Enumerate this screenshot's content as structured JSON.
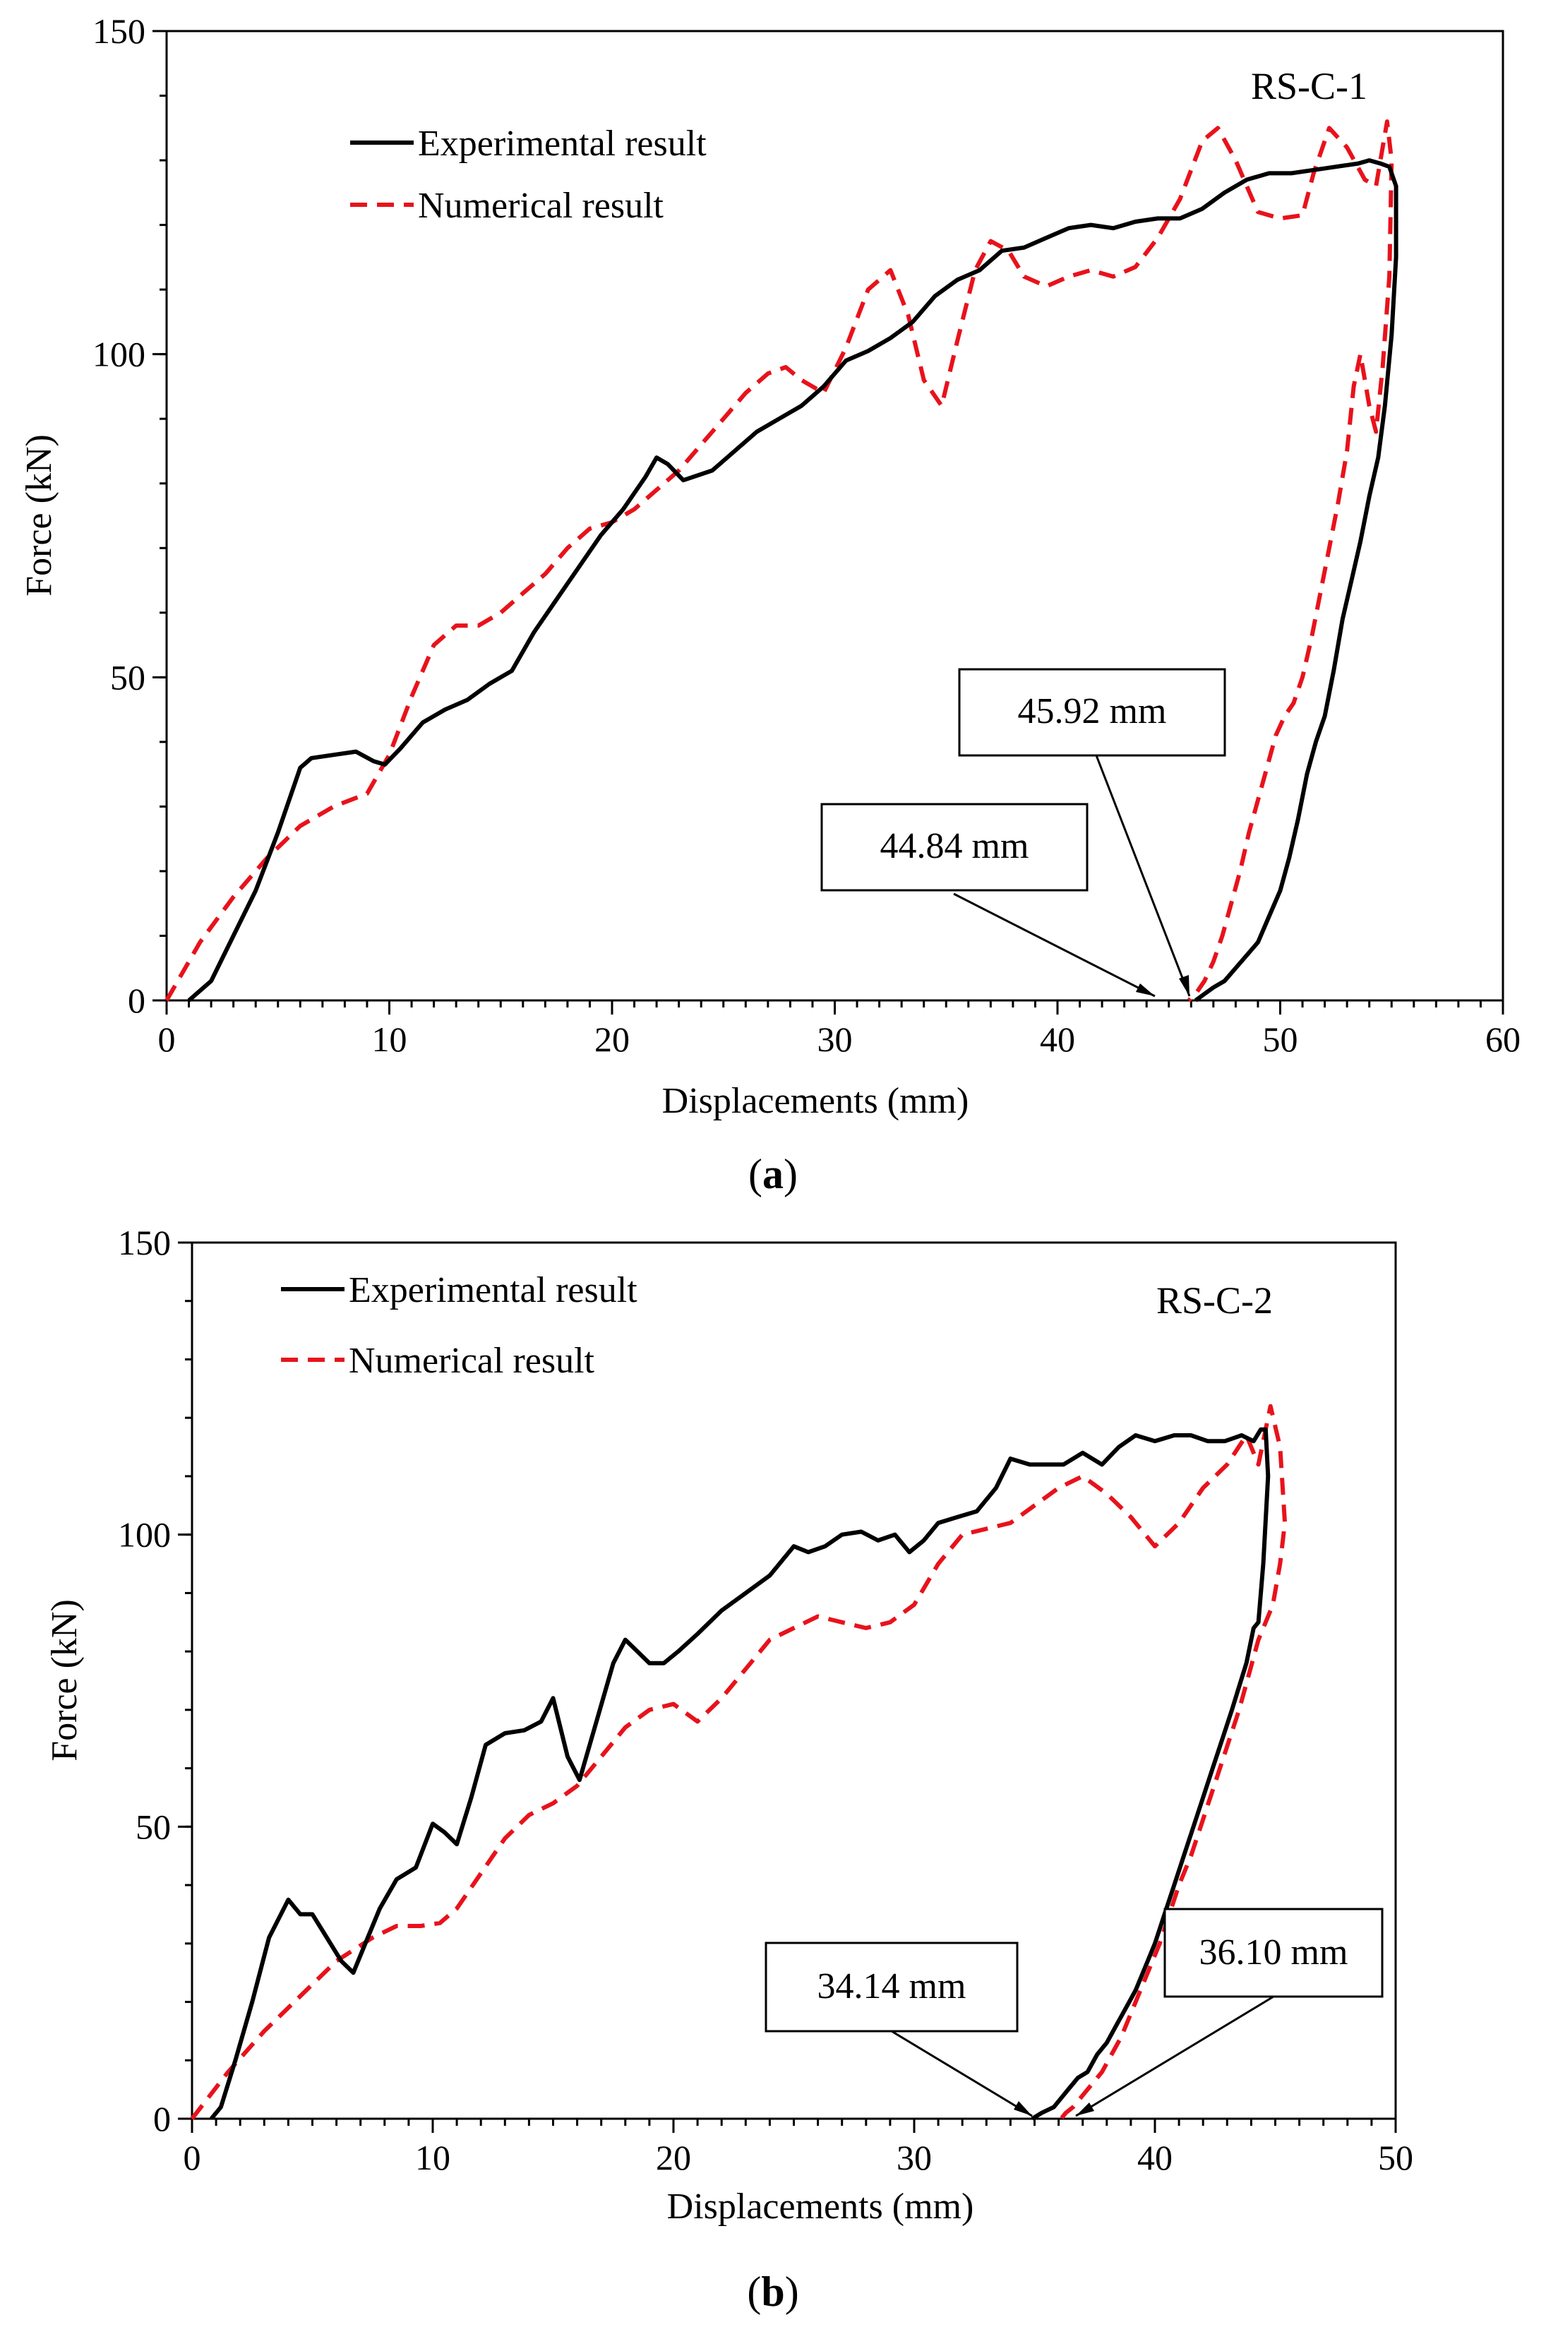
{
  "chart_data": [
    {
      "type": "line",
      "panel_label": "a",
      "chart_id": "RS-C-1",
      "xlabel": "Displacements (mm)",
      "ylabel": "Force (kN)",
      "xlim": [
        0,
        60
      ],
      "ylim": [
        0,
        150
      ],
      "xticks": [
        0,
        10,
        20,
        30,
        40,
        50,
        60
      ],
      "yticks": [
        0,
        50,
        100,
        150
      ],
      "legend_position": "top-left",
      "series": [
        {
          "name": "Experimental result",
          "style": "solid",
          "color": "#000000",
          "x": [
            1.0,
            2.0,
            3.0,
            4.0,
            5.0,
            6.0,
            6.5,
            7.5,
            8.5,
            9.3,
            9.8,
            10.5,
            11.5,
            12.5,
            13.5,
            14.5,
            15.5,
            16.5,
            17.5,
            18.5,
            19.5,
            20.5,
            21.5,
            22.0,
            22.5,
            23.2,
            24.5,
            25.5,
            26.5,
            27.5,
            28.5,
            29.5,
            30.5,
            31.5,
            32.5,
            33.5,
            34.5,
            35.5,
            36.5,
            37.5,
            38.5,
            39.5,
            40.5,
            41.5,
            42.5,
            43.5,
            44.5,
            45.5,
            46.5,
            47.5,
            48.5,
            49.5,
            50.5,
            51.5,
            52.5,
            53.5,
            54.0,
            54.5,
            54.9,
            55.2,
            55.2,
            55.0,
            54.7,
            54.4,
            54.0,
            53.6,
            53.2,
            52.8,
            52.4,
            52.0,
            51.6,
            51.2,
            50.8,
            50.4,
            50.0,
            49.5,
            49.0,
            48.5,
            48.0,
            47.5,
            47.0,
            46.6,
            46.2
          ],
          "y": [
            0,
            3,
            10,
            17,
            26,
            36,
            37.5,
            38,
            38.5,
            37,
            36.5,
            39,
            43,
            45,
            46.5,
            49,
            51,
            57,
            62,
            67,
            72,
            76,
            81,
            84,
            83,
            80.5,
            82,
            85,
            88,
            90,
            92,
            95,
            99,
            100.5,
            102.5,
            105,
            109,
            111.5,
            113,
            116,
            116.5,
            118,
            119.5,
            120,
            119.5,
            120.5,
            121,
            121,
            122.5,
            125,
            127,
            128,
            128,
            128.5,
            129,
            129.5,
            130,
            129.5,
            129,
            126,
            115,
            103,
            92,
            84,
            78,
            71,
            65,
            59,
            51,
            44,
            40,
            35,
            28,
            22,
            17,
            13,
            9,
            7,
            5,
            3,
            2,
            1,
            0
          ]
        },
        {
          "name": "Numerical result",
          "style": "dashed",
          "color": "#e8121b",
          "x": [
            0,
            1.5,
            3.0,
            4.5,
            6.0,
            7.5,
            9.0,
            10.0,
            11.0,
            12.0,
            13.0,
            14.0,
            15.0,
            16.0,
            17.0,
            18.0,
            19.0,
            20.0,
            21.0,
            22.0,
            23.0,
            24.0,
            25.0,
            26.0,
            27.0,
            27.8,
            28.5,
            29.5,
            30.5,
            31.5,
            32.5,
            33.3,
            34.0,
            34.8,
            35.5,
            36.3,
            37.0,
            37.8,
            38.5,
            39.5,
            40.5,
            41.5,
            42.5,
            43.5,
            44.5,
            45.5,
            46.5,
            47.2,
            48.0,
            49.0,
            50.0,
            51.0,
            51.5,
            52.2,
            53.0,
            53.8,
            54.3,
            54.8,
            55.0,
            54.9,
            54.6,
            54.3,
            54.0,
            53.6,
            53.3,
            53.0,
            52.6,
            52.2,
            51.8,
            51.4,
            51.0,
            50.6,
            50.2,
            49.8,
            49.4,
            49.0,
            48.6,
            48.2,
            47.8,
            47.4,
            47.0,
            46.6,
            46.2,
            45.9
          ],
          "y": [
            0,
            9,
            16,
            22,
            27,
            30,
            32,
            38,
            47,
            55,
            58,
            58,
            60,
            63,
            66,
            70,
            73,
            74,
            76,
            79,
            82,
            86,
            90,
            94,
            97,
            98,
            96,
            94,
            101,
            110,
            113,
            106,
            96,
            92,
            102,
            113,
            117.5,
            116,
            112,
            110.5,
            112,
            113,
            112,
            113.5,
            118,
            124,
            133,
            135,
            130,
            122,
            121,
            121.5,
            128,
            135,
            132,
            127,
            126,
            136,
            130,
            112,
            98,
            88,
            92,
            100,
            95,
            85,
            77,
            70,
            63,
            56,
            50,
            46,
            44,
            41,
            36,
            31,
            26,
            20,
            15,
            10,
            6,
            3,
            1,
            0
          ]
        }
      ],
      "annotations": [
        {
          "text": "45.92 mm",
          "x": 45.92,
          "y": 0
        },
        {
          "text": "44.84 mm",
          "x": 44.84,
          "y": 0
        }
      ]
    },
    {
      "type": "line",
      "panel_label": "b",
      "chart_id": "RS-C-2",
      "xlabel": "Displacements (mm)",
      "ylabel": "Force (kN)",
      "xlim": [
        0,
        50
      ],
      "ylim": [
        0,
        150
      ],
      "xticks": [
        0,
        10,
        20,
        30,
        40,
        50
      ],
      "yticks": [
        0,
        50,
        100,
        150
      ],
      "legend_position": "top-left",
      "series": [
        {
          "name": "Experimental result",
          "style": "solid",
          "color": "#000000",
          "x": [
            0.8,
            1.2,
            1.8,
            2.5,
            3.2,
            4.0,
            4.5,
            5.0,
            5.6,
            6.2,
            6.7,
            7.2,
            7.8,
            8.5,
            9.3,
            10.0,
            10.5,
            11.0,
            11.6,
            12.2,
            13.0,
            13.8,
            14.5,
            15.0,
            15.6,
            16.1,
            16.8,
            17.5,
            18.0,
            18.5,
            19.0,
            19.6,
            20.2,
            21.0,
            22.0,
            23.0,
            24.0,
            25.0,
            25.6,
            26.3,
            27.0,
            27.8,
            28.5,
            29.2,
            29.8,
            30.4,
            31.0,
            31.8,
            32.6,
            33.4,
            34.0,
            34.8,
            35.5,
            36.2,
            37.0,
            37.8,
            38.5,
            39.2,
            40.0,
            40.8,
            41.5,
            42.2,
            42.9,
            43.6,
            44.1,
            44.4,
            44.6,
            44.7,
            44.5,
            44.3,
            44.1,
            43.8,
            43.5,
            43.2,
            42.8,
            42.4,
            42.0,
            41.6,
            41.2,
            40.8,
            40.4,
            40.0,
            39.6,
            39.2,
            38.8,
            38.4,
            38.0,
            37.6,
            37.2,
            36.8,
            36.4,
            36.2,
            35.8,
            35.3,
            34.9
          ],
          "y": [
            0,
            2,
            10,
            20,
            31,
            37.5,
            35,
            35,
            31,
            27,
            25,
            30,
            36,
            41,
            43,
            50.5,
            49,
            47,
            55,
            64,
            66,
            66.5,
            68,
            72,
            62,
            58,
            68,
            78,
            82,
            80,
            78,
            78,
            80,
            83,
            87,
            90,
            93,
            98,
            97,
            98,
            100,
            100.5,
            99,
            100,
            97,
            99,
            102,
            103,
            104,
            108,
            113,
            112,
            112,
            112,
            114,
            112,
            115,
            117,
            116,
            117,
            117,
            116,
            116,
            117,
            116,
            118,
            118,
            110,
            95,
            85,
            84,
            78,
            74,
            70,
            65,
            60,
            55,
            50,
            45,
            40,
            35,
            30,
            26,
            22,
            19,
            16,
            13,
            11,
            8,
            7,
            5,
            4,
            2,
            1,
            0
          ]
        },
        {
          "name": "Numerical result",
          "style": "dashed",
          "color": "#e8121b",
          "x": [
            0,
            1.5,
            3.0,
            4.5,
            6.0,
            7.5,
            8.5,
            9.5,
            10.3,
            11.0,
            12.0,
            13.0,
            14.0,
            15.0,
            16.0,
            17.0,
            18.0,
            19.0,
            20.0,
            21.0,
            22.0,
            23.0,
            24.0,
            25.0,
            26.0,
            27.0,
            28.0,
            29.0,
            30.0,
            31.0,
            32.0,
            33.0,
            34.0,
            35.0,
            36.0,
            37.0,
            38.0,
            39.0,
            40.0,
            41.0,
            42.0,
            43.0,
            43.8,
            44.3,
            44.8,
            45.2,
            45.4,
            45.2,
            44.9,
            44.6,
            44.3,
            43.9,
            43.5,
            43.1,
            42.7,
            42.3,
            41.9,
            41.5,
            41.0,
            40.6,
            40.2,
            39.8,
            39.4,
            39.0,
            38.6,
            38.2,
            37.8,
            37.4,
            37.0,
            36.6,
            36.3,
            36.1
          ],
          "y": [
            0,
            8,
            15,
            21,
            27,
            31,
            33,
            33,
            33.5,
            36,
            42,
            48,
            52,
            54,
            57,
            62,
            67,
            70,
            71,
            68,
            72,
            77,
            82,
            84,
            86,
            85,
            84,
            85,
            88,
            95,
            100,
            101,
            102,
            105,
            108,
            110,
            107,
            103,
            98,
            102,
            108,
            112,
            117,
            112,
            122,
            115,
            102,
            95,
            88,
            85,
            82,
            76,
            70,
            65,
            60,
            55,
            50,
            45,
            40,
            35,
            30,
            26,
            22,
            18,
            14,
            11,
            8,
            6,
            4,
            2,
            1,
            0
          ]
        }
      ],
      "annotations": [
        {
          "text": "34.14 mm",
          "x": 34.14,
          "y": 0
        },
        {
          "text": "36.10 mm",
          "x": 36.1,
          "y": 0
        }
      ]
    }
  ]
}
